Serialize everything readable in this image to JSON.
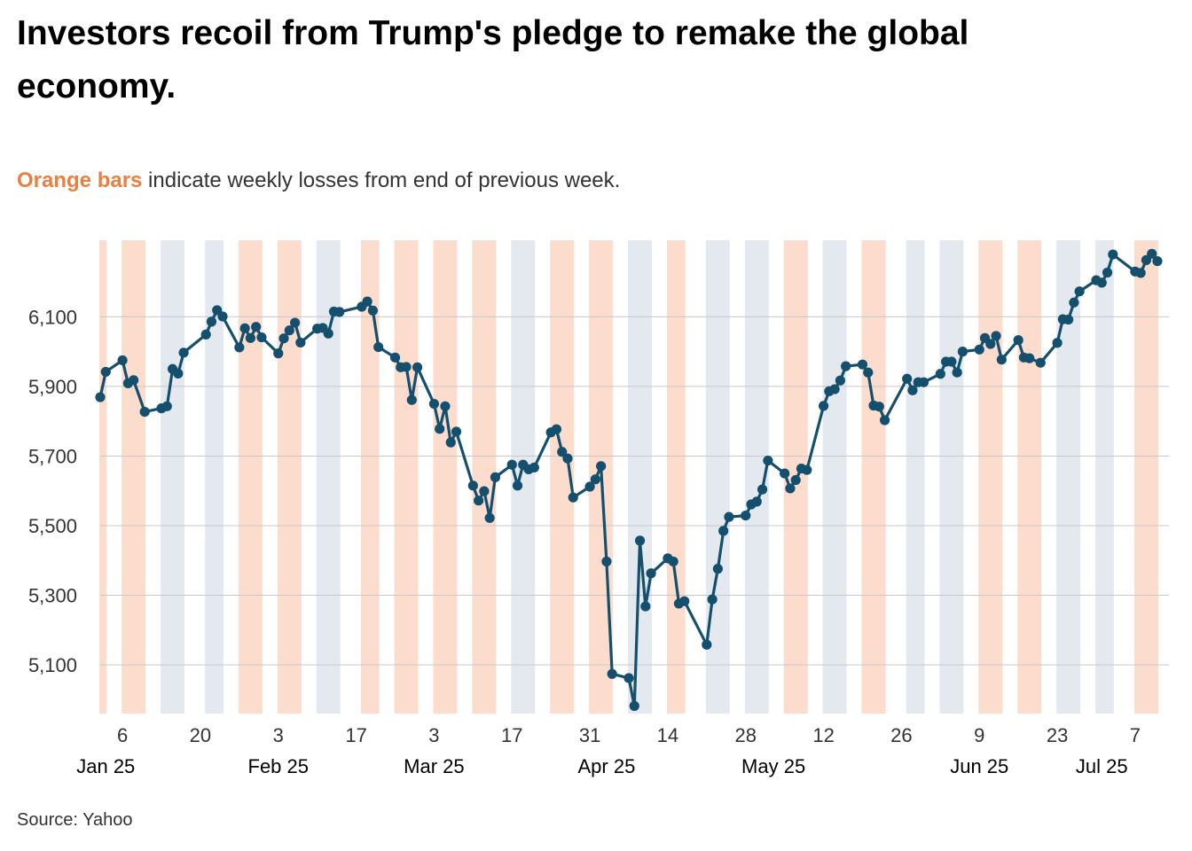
{
  "title": "Investors recoil from Trump's pledge to remake the global economy.",
  "subtitle": {
    "highlight": "Orange bars",
    "rest": " indicate weekly losses from end of previous week."
  },
  "source": "Source: Yahoo",
  "colors": {
    "line": "#14506e",
    "loss_band": "#fbdccd",
    "gain_band": "#e3e9ee",
    "grid": "#c8c8c8",
    "highlight_text": "#ea8040"
  },
  "chart_data": {
    "type": "line",
    "x_start": "2025-01-02",
    "x_end": "2025-07-11",
    "ylim": [
      4960,
      6320
    ],
    "yticks": [
      5100,
      5300,
      5500,
      5700,
      5900,
      6100
    ],
    "ytick_labels": [
      "5,100",
      "5,300",
      "5,500",
      "5,700",
      "5,900",
      "6,100"
    ],
    "x_tick_dates": [
      "2025-01-06",
      "2025-01-20",
      "2025-02-03",
      "2025-02-17",
      "2025-03-03",
      "2025-03-17",
      "2025-03-31",
      "2025-04-14",
      "2025-04-28",
      "2025-05-12",
      "2025-05-26",
      "2025-06-09",
      "2025-06-23",
      "2025-07-07"
    ],
    "x_tick_labels": [
      "6",
      "20",
      "3",
      "17",
      "3",
      "17",
      "31",
      "14",
      "28",
      "12",
      "26",
      "9",
      "23",
      "7"
    ],
    "month_labels": [
      {
        "date": "2025-01-03",
        "label": "Jan 25"
      },
      {
        "date": "2025-02-03",
        "label": "Feb 25"
      },
      {
        "date": "2025-03-03",
        "label": "Mar 25"
      },
      {
        "date": "2025-04-03",
        "label": "Apr 25"
      },
      {
        "date": "2025-05-03",
        "label": "May 25"
      },
      {
        "date": "2025-06-09",
        "label": "Jun 25"
      },
      {
        "date": "2025-07-01",
        "label": "Jul 25"
      }
    ],
    "weeks": [
      {
        "start": "2025-01-02",
        "end": "2025-01-03",
        "loss": true
      },
      {
        "start": "2025-01-06",
        "end": "2025-01-10",
        "loss": true
      },
      {
        "start": "2025-01-13",
        "end": "2025-01-17",
        "loss": false
      },
      {
        "start": "2025-01-21",
        "end": "2025-01-24",
        "loss": false
      },
      {
        "start": "2025-01-27",
        "end": "2025-01-31",
        "loss": true
      },
      {
        "start": "2025-02-03",
        "end": "2025-02-07",
        "loss": true
      },
      {
        "start": "2025-02-10",
        "end": "2025-02-14",
        "loss": false
      },
      {
        "start": "2025-02-18",
        "end": "2025-02-21",
        "loss": true
      },
      {
        "start": "2025-02-24",
        "end": "2025-02-28",
        "loss": true
      },
      {
        "start": "2025-03-03",
        "end": "2025-03-07",
        "loss": true
      },
      {
        "start": "2025-03-10",
        "end": "2025-03-14",
        "loss": true
      },
      {
        "start": "2025-03-17",
        "end": "2025-03-21",
        "loss": false
      },
      {
        "start": "2025-03-24",
        "end": "2025-03-28",
        "loss": true
      },
      {
        "start": "2025-03-31",
        "end": "2025-04-04",
        "loss": true
      },
      {
        "start": "2025-04-07",
        "end": "2025-04-11",
        "loss": false
      },
      {
        "start": "2025-04-14",
        "end": "2025-04-17",
        "loss": true
      },
      {
        "start": "2025-04-21",
        "end": "2025-04-25",
        "loss": false
      },
      {
        "start": "2025-04-28",
        "end": "2025-05-02",
        "loss": false
      },
      {
        "start": "2025-05-05",
        "end": "2025-05-09",
        "loss": true
      },
      {
        "start": "2025-05-12",
        "end": "2025-05-16",
        "loss": false
      },
      {
        "start": "2025-05-19",
        "end": "2025-05-23",
        "loss": true
      },
      {
        "start": "2025-05-27",
        "end": "2025-05-30",
        "loss": false
      },
      {
        "start": "2025-06-02",
        "end": "2025-06-06",
        "loss": false
      },
      {
        "start": "2025-06-09",
        "end": "2025-06-13",
        "loss": true
      },
      {
        "start": "2025-06-16",
        "end": "2025-06-20",
        "loss": true
      },
      {
        "start": "2025-06-23",
        "end": "2025-06-27",
        "loss": false
      },
      {
        "start": "2025-06-30",
        "end": "2025-07-03",
        "loss": false
      },
      {
        "start": "2025-07-07",
        "end": "2025-07-11",
        "loss": true
      }
    ],
    "series": [
      {
        "x": [
          "2025-01-02",
          "2025-01-03",
          "2025-01-06",
          "2025-01-07",
          "2025-01-08",
          "2025-01-10",
          "2025-01-13",
          "2025-01-14",
          "2025-01-15",
          "2025-01-16",
          "2025-01-17",
          "2025-01-21",
          "2025-01-22",
          "2025-01-23",
          "2025-01-24",
          "2025-01-27",
          "2025-01-28",
          "2025-01-29",
          "2025-01-30",
          "2025-01-31",
          "2025-02-03",
          "2025-02-04",
          "2025-02-05",
          "2025-02-06",
          "2025-02-07",
          "2025-02-10",
          "2025-02-11",
          "2025-02-12",
          "2025-02-13",
          "2025-02-14",
          "2025-02-18",
          "2025-02-19",
          "2025-02-20",
          "2025-02-21",
          "2025-02-24",
          "2025-02-25",
          "2025-02-26",
          "2025-02-27",
          "2025-02-28",
          "2025-03-03",
          "2025-03-04",
          "2025-03-05",
          "2025-03-06",
          "2025-03-07",
          "2025-03-10",
          "2025-03-11",
          "2025-03-12",
          "2025-03-13",
          "2025-03-14",
          "2025-03-17",
          "2025-03-18",
          "2025-03-19",
          "2025-03-20",
          "2025-03-21",
          "2025-03-24",
          "2025-03-25",
          "2025-03-26",
          "2025-03-27",
          "2025-03-28",
          "2025-03-31",
          "2025-04-01",
          "2025-04-02",
          "2025-04-03",
          "2025-04-04",
          "2025-04-07",
          "2025-04-08",
          "2025-04-09",
          "2025-04-10",
          "2025-04-11",
          "2025-04-14",
          "2025-04-15",
          "2025-04-16",
          "2025-04-17",
          "2025-04-21",
          "2025-04-22",
          "2025-04-23",
          "2025-04-24",
          "2025-04-25",
          "2025-04-28",
          "2025-04-29",
          "2025-04-30",
          "2025-05-01",
          "2025-05-02",
          "2025-05-05",
          "2025-05-06",
          "2025-05-07",
          "2025-05-08",
          "2025-05-09",
          "2025-05-12",
          "2025-05-13",
          "2025-05-14",
          "2025-05-15",
          "2025-05-16",
          "2025-05-19",
          "2025-05-20",
          "2025-05-21",
          "2025-05-22",
          "2025-05-23",
          "2025-05-27",
          "2025-05-28",
          "2025-05-29",
          "2025-05-30",
          "2025-06-02",
          "2025-06-03",
          "2025-06-04",
          "2025-06-05",
          "2025-06-06",
          "2025-06-09",
          "2025-06-10",
          "2025-06-11",
          "2025-06-12",
          "2025-06-13",
          "2025-06-16",
          "2025-06-17",
          "2025-06-18",
          "2025-06-20",
          "2025-06-23",
          "2025-06-24",
          "2025-06-25",
          "2025-06-26",
          "2025-06-27",
          "2025-06-30",
          "2025-07-01",
          "2025-07-02",
          "2025-07-03",
          "2025-07-07",
          "2025-07-08",
          "2025-07-09",
          "2025-07-10",
          "2025-07-11"
        ],
        "y": [
          5869,
          5942,
          5975,
          5909,
          5918,
          5827,
          5837,
          5843,
          5950,
          5937,
          5997,
          6049,
          6086,
          6119,
          6101,
          6012,
          6067,
          6039,
          6071,
          6041,
          5995,
          6038,
          6061,
          6083,
          6026,
          6066,
          6068,
          6052,
          6115,
          6114,
          6129,
          6144,
          6118,
          6013,
          5983,
          5955,
          5956,
          5861,
          5955,
          5850,
          5778,
          5843,
          5739,
          5770,
          5615,
          5572,
          5599,
          5522,
          5639,
          5675,
          5615,
          5675,
          5662,
          5667,
          5768,
          5777,
          5712,
          5693,
          5581,
          5612,
          5633,
          5671,
          5397,
          5074,
          5062,
          4982,
          5457,
          5268,
          5363,
          5406,
          5397,
          5276,
          5283,
          5158,
          5288,
          5376,
          5485,
          5525,
          5529,
          5561,
          5569,
          5604,
          5687,
          5650,
          5607,
          5631,
          5664,
          5660,
          5844,
          5886,
          5892,
          5917,
          5958,
          5963,
          5940,
          5845,
          5842,
          5803,
          5922,
          5889,
          5912,
          5912,
          5936,
          5971,
          5971,
          5940,
          6000,
          6006,
          6039,
          6022,
          6045,
          5977,
          6033,
          5983,
          5981,
          5968,
          6025,
          6093,
          6092,
          6141,
          6173,
          6205,
          6198,
          6227,
          6279,
          6230,
          6226,
          6263,
          6281,
          6260
        ]
      }
    ]
  }
}
